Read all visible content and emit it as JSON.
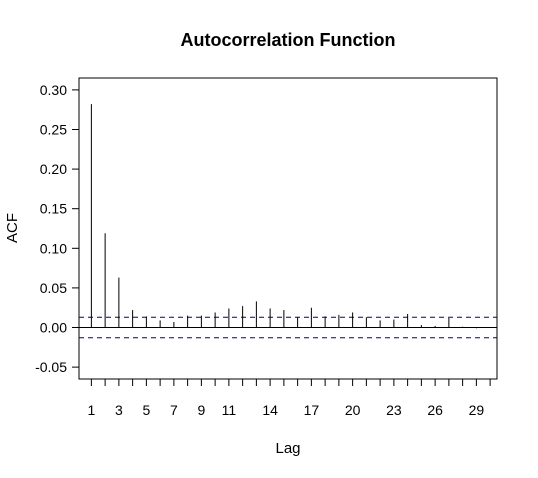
{
  "chart_data": {
    "type": "bar",
    "title": "Autocorrelation Function",
    "xlabel": "Lag",
    "ylabel": "ACF",
    "x": [
      1,
      2,
      3,
      4,
      5,
      6,
      7,
      8,
      9,
      10,
      11,
      12,
      13,
      14,
      15,
      16,
      17,
      18,
      19,
      20,
      21,
      22,
      23,
      24,
      25,
      26,
      27,
      28,
      29,
      30
    ],
    "values": [
      0.282,
      0.119,
      0.063,
      0.022,
      0.014,
      0.009,
      0.007,
      0.015,
      0.015,
      0.019,
      0.024,
      0.027,
      0.033,
      0.024,
      0.022,
      0.013,
      0.025,
      0.014,
      0.016,
      0.019,
      0.013,
      0.009,
      0.01,
      0.017,
      0.003,
      0.002,
      0.012,
      0.001,
      -0.001,
      0
    ],
    "ylim": [
      -0.065,
      0.315
    ],
    "xlim": [
      0.1,
      30.5
    ],
    "yticks": [
      -0.05,
      0.0,
      0.05,
      0.1,
      0.15,
      0.2,
      0.25,
      0.3
    ],
    "ytick_labels": [
      "-0.05",
      "0.00",
      "0.05",
      "0.10",
      "0.15",
      "0.20",
      "0.25",
      "0.30"
    ],
    "xticks": [
      1,
      2,
      3,
      4,
      5,
      6,
      7,
      8,
      9,
      10,
      11,
      12,
      13,
      14,
      15,
      16,
      17,
      18,
      19,
      20,
      21,
      22,
      23,
      24,
      25,
      26,
      27,
      28,
      29,
      30
    ],
    "xtick_labels": [
      "1",
      "3",
      "5",
      "7",
      "9",
      "11",
      "14",
      "17",
      "20",
      "23",
      "26",
      "29"
    ],
    "xtick_label_positions": [
      1,
      3,
      5,
      7,
      9,
      11,
      14,
      17,
      20,
      23,
      26,
      29
    ],
    "confidence_bounds": [
      0.013,
      -0.013
    ],
    "zero_line": 0,
    "grid": false,
    "colors": {
      "bars": "#000000",
      "confidence": "#00008b",
      "axes": "#000000"
    }
  }
}
